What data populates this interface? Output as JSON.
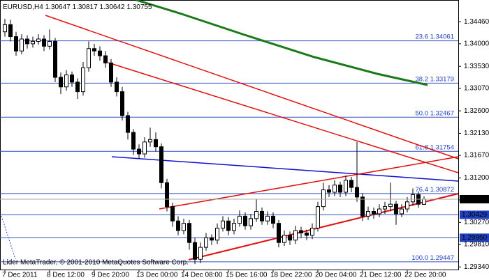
{
  "header": {
    "symbol": "EURUSD,H4"
  },
  "footer": "Lider MetaTrader, © 2001-2010 MetaQuotes Software Corp.",
  "chart_data": {
    "type": "candlestick",
    "categories": [
      "7 Dec 2011",
      null,
      null,
      null,
      null,
      null,
      null,
      null,
      "8 Dec 12:00",
      null,
      null,
      null,
      null,
      null,
      null,
      null,
      "9 Dec 20:00",
      null,
      null,
      null,
      null,
      null,
      null,
      null,
      "13 Dec 00:00",
      null,
      null,
      null,
      null,
      null,
      null,
      null,
      "14 Dec 08:00",
      null,
      null,
      null,
      null,
      null,
      null,
      null,
      "15 Dec 16:00",
      null,
      null,
      null,
      null,
      null,
      null,
      null,
      "18 Dec 22:00",
      null,
      null,
      null,
      null,
      null,
      null,
      null,
      "20 Dec 04:00",
      null,
      null,
      null,
      null,
      null,
      null,
      null,
      "21 Dec 12:00",
      null,
      null,
      null,
      null,
      null,
      null,
      null,
      "22 Dec 20:00",
      null,
      null,
      null
    ],
    "open": [
      1.3425,
      1.344,
      1.3415,
      1.3385,
      1.341,
      1.34,
      1.3405,
      1.341,
      1.3395,
      1.3405,
      1.333,
      1.331,
      1.3335,
      1.332,
      1.33,
      1.335,
      1.339,
      1.3385,
      1.3375,
      1.336,
      1.332,
      1.33,
      1.325,
      1.3215,
      1.318,
      1.317,
      1.3195,
      1.32,
      1.3185,
      1.311,
      1.306,
      1.303,
      1.301,
      1.3025,
      1.2985,
      1.295,
      1.2975,
      1.2995,
      1.299,
      1.3015,
      1.303,
      1.301,
      1.3025,
      1.304,
      1.302,
      1.3035,
      1.305,
      1.303,
      1.304,
      1.3025,
      1.2985,
      1.3,
      1.299,
      1.301,
      1.3005,
      1.3,
      1.3015,
      1.306,
      1.3095,
      1.309,
      1.3105,
      1.309,
      1.3115,
      1.31,
      1.308,
      1.304,
      1.305,
      1.3045,
      1.3055,
      1.306,
      1.3065,
      1.3045,
      1.3055,
      1.307,
      1.3085,
      1.30647
    ],
    "high": [
      1.3452,
      1.345,
      1.3425,
      1.342,
      1.3418,
      1.3415,
      1.342,
      1.3418,
      1.343,
      1.3412,
      1.334,
      1.3345,
      1.3342,
      1.3328,
      1.3362,
      1.3405,
      1.34,
      1.3395,
      1.3385,
      1.3368,
      1.333,
      1.331,
      1.3258,
      1.3222,
      1.319,
      1.3205,
      1.3225,
      1.3215,
      1.3192,
      1.3118,
      1.3068,
      1.304,
      1.3035,
      1.3032,
      1.2995,
      1.2985,
      1.3005,
      1.3002,
      1.3025,
      1.304,
      1.3038,
      1.3035,
      1.3052,
      1.3048,
      1.3045,
      1.3075,
      1.3058,
      1.305,
      1.3048,
      1.3032,
      1.301,
      1.3008,
      1.302,
      1.3018,
      1.3012,
      1.3025,
      1.307,
      1.311,
      1.3105,
      1.3115,
      1.3112,
      1.3125,
      1.3122,
      1.3195,
      1.3088,
      1.306,
      1.3058,
      1.3065,
      1.307,
      1.311,
      1.3072,
      1.3065,
      1.308,
      1.3098,
      1.3092,
      1.30817
    ],
    "low": [
      1.3415,
      1.3405,
      1.3375,
      1.3378,
      1.339,
      1.3392,
      1.3398,
      1.3385,
      1.3388,
      1.332,
      1.3295,
      1.3302,
      1.331,
      1.3285,
      1.3292,
      1.3342,
      1.3375,
      1.3365,
      1.335,
      1.331,
      1.329,
      1.324,
      1.32,
      1.3168,
      1.316,
      1.3162,
      1.3185,
      1.3175,
      1.3098,
      1.305,
      1.3018,
      1.3,
      1.3002,
      1.297,
      1.294,
      1.2942,
      1.2968,
      1.298,
      1.2982,
      1.3008,
      1.3,
      1.3002,
      1.3018,
      1.3012,
      1.3012,
      1.3028,
      1.3022,
      1.3022,
      1.3015,
      1.2975,
      1.2978,
      1.298,
      1.2982,
      1.2995,
      1.299,
      1.2992,
      1.3008,
      1.3052,
      1.308,
      1.3082,
      1.308,
      1.3082,
      1.309,
      1.307,
      1.303,
      1.3032,
      1.3035,
      1.3038,
      1.3045,
      1.305,
      1.3022,
      1.3038,
      1.3048,
      1.3062,
      1.3058,
      1.30642
    ],
    "close": [
      1.344,
      1.3415,
      1.3385,
      1.341,
      1.34,
      1.3405,
      1.341,
      1.3395,
      1.3405,
      1.333,
      1.331,
      1.3335,
      1.332,
      1.33,
      1.335,
      1.339,
      1.3385,
      1.3375,
      1.336,
      1.332,
      1.33,
      1.325,
      1.3215,
      1.318,
      1.317,
      1.3195,
      1.32,
      1.3185,
      1.311,
      1.306,
      1.303,
      1.301,
      1.3025,
      1.2985,
      1.295,
      1.2975,
      1.2995,
      1.299,
      1.3015,
      1.303,
      1.301,
      1.3025,
      1.304,
      1.302,
      1.3035,
      1.305,
      1.303,
      1.304,
      1.3025,
      1.2985,
      1.3,
      1.299,
      1.301,
      1.3005,
      1.3,
      1.3015,
      1.306,
      1.3095,
      1.309,
      1.3105,
      1.309,
      1.3115,
      1.31,
      1.308,
      1.304,
      1.305,
      1.3045,
      1.3055,
      1.306,
      1.3065,
      1.3045,
      1.3055,
      1.307,
      1.3085,
      1.3065,
      1.30755
    ],
    "ylim": [
      1.293,
      1.349
    ],
    "yticks": [
      {
        "value": 1.3446,
        "label": "1.34460"
      },
      {
        "value": 1.34,
        "label": "1.34000"
      },
      {
        "value": 1.3353,
        "label": "1.33530"
      },
      {
        "value": 1.3307,
        "label": "1.33070"
      },
      {
        "value": 1.326,
        "label": "1.32600"
      },
      {
        "value": 1.3213,
        "label": "1.32130"
      },
      {
        "value": 1.3167,
        "label": "1.31670"
      },
      {
        "value": 1.312,
        "label": "1.31200"
      },
      {
        "value": 1.3074,
        "label": "1.30740"
      },
      {
        "value": 1.3027,
        "label": "1.30270"
      },
      {
        "value": 1.2981,
        "label": "1.29810"
      },
      {
        "value": 1.2934,
        "label": "1.29340"
      }
    ],
    "fib_levels": [
      {
        "ratio": "23.6",
        "price": 1.34061
      },
      {
        "ratio": "38.2",
        "price": 1.33179
      },
      {
        "ratio": "50.0",
        "price": 1.32467
      },
      {
        "ratio": "61.8",
        "price": 1.31754
      },
      {
        "ratio": "76.4",
        "price": 1.30872
      },
      {
        "ratio": "100.0",
        "price": 1.29447
      }
    ],
    "price_levels": [
      1.30429,
      {
        "value": 1.2995,
        "label": "1.29950"
      }
    ],
    "grid": false
  }
}
